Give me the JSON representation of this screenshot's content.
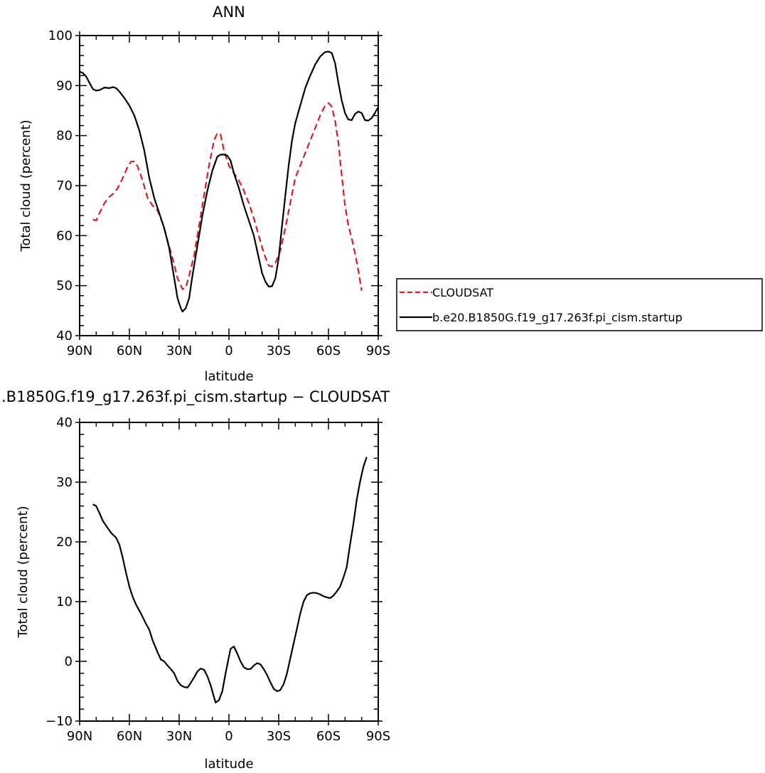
{
  "colors": {
    "model": "#000000",
    "obs": "#e0191d"
  },
  "chart_data": [
    {
      "type": "line",
      "title": "ANN",
      "xlabel": "latitude",
      "ylabel": "Total cloud (percent)",
      "xlim": [
        -90,
        90
      ],
      "ylim": [
        40,
        100
      ],
      "x_ticks": [
        -90,
        -60,
        -30,
        0,
        30,
        60,
        90
      ],
      "x_tick_labels": [
        "90N",
        "60N",
        "30N",
        "0",
        "30S",
        "60S",
        "90S"
      ],
      "y_ticks": [
        40,
        50,
        60,
        70,
        80,
        90,
        100
      ],
      "y_tick_labels": [
        "40",
        "50",
        "60",
        "70",
        "80",
        "90",
        "100"
      ],
      "grid": false,
      "legend": {
        "placement": "right",
        "entries": [
          "CLOUDSAT",
          "b.e20.B1850G.f19_g17.263f.pi_cism.startup"
        ]
      },
      "series": [
        {
          "name": "CLOUDSAT",
          "color": "#e0191d",
          "dash": true,
          "points": [
            [
              -82,
              63.2
            ],
            [
              -80,
              63
            ],
            [
              -78,
              64.5
            ],
            [
              -75,
              66.5
            ],
            [
              -72,
              67.8
            ],
            [
              -70,
              68.3
            ],
            [
              -67,
              69.5
            ],
            [
              -64,
              71.5
            ],
            [
              -61,
              73.8
            ],
            [
              -59,
              74.8
            ],
            [
              -57,
              74.8
            ],
            [
              -55,
              73.8
            ],
            [
              -52,
              71
            ],
            [
              -49,
              67.5
            ],
            [
              -46,
              66
            ],
            [
              -43,
              65
            ],
            [
              -40,
              62.5
            ],
            [
              -37,
              59
            ],
            [
              -34,
              55.5
            ],
            [
              -31,
              51.5
            ],
            [
              -28,
              49.3
            ],
            [
              -26,
              49.6
            ],
            [
              -24,
              52
            ],
            [
              -21,
              56
            ],
            [
              -18,
              62
            ],
            [
              -15,
              68
            ],
            [
              -12,
              74
            ],
            [
              -9,
              79
            ],
            [
              -7,
              80.5
            ],
            [
              -5,
              80.2
            ],
            [
              -3,
              77
            ],
            [
              0,
              74
            ],
            [
              3,
              72.5
            ],
            [
              6,
              71
            ],
            [
              9,
              69
            ],
            [
              12,
              66.5
            ],
            [
              15,
              63.5
            ],
            [
              18,
              60
            ],
            [
              21,
              56.5
            ],
            [
              24,
              54
            ],
            [
              26,
              53.8
            ],
            [
              28,
              54.5
            ],
            [
              31,
              57
            ],
            [
              34,
              61.5
            ],
            [
              37,
              66.5
            ],
            [
              40,
              71.5
            ],
            [
              43,
              74
            ],
            [
              46,
              76.5
            ],
            [
              49,
              79
            ],
            [
              52,
              81.5
            ],
            [
              55,
              84
            ],
            [
              58,
              86
            ],
            [
              60,
              86.5
            ],
            [
              62,
              85.8
            ],
            [
              64,
              83
            ],
            [
              66,
              78.5
            ],
            [
              68,
              72
            ],
            [
              70,
              66
            ],
            [
              72,
              62
            ],
            [
              74,
              59.5
            ],
            [
              76,
              56.5
            ],
            [
              78,
              53
            ],
            [
              80,
              49
            ]
          ]
        },
        {
          "name": "b.e20.B1850G.f19_g17.263f.pi_cism.startup",
          "color": "#000000",
          "dash": false,
          "points": [
            [
              -90,
              92.8
            ],
            [
              -88,
              92.5
            ],
            [
              -86,
              91.8
            ],
            [
              -84,
              90.5
            ],
            [
              -82,
              89.3
            ],
            [
              -80,
              89
            ],
            [
              -78,
              89.1
            ],
            [
              -75,
              89.6
            ],
            [
              -72,
              89.5
            ],
            [
              -70,
              89.7
            ],
            [
              -68,
              89.5
            ],
            [
              -66,
              88.8
            ],
            [
              -63,
              87.5
            ],
            [
              -60,
              86
            ],
            [
              -57,
              84
            ],
            [
              -54,
              81
            ],
            [
              -51,
              77
            ],
            [
              -48,
              71.5
            ],
            [
              -45,
              67.5
            ],
            [
              -42,
              64.5
            ],
            [
              -39,
              61.5
            ],
            [
              -36,
              57.5
            ],
            [
              -33,
              51.5
            ],
            [
              -31,
              47.5
            ],
            [
              -29,
              45.5
            ],
            [
              -28,
              44.8
            ],
            [
              -26,
              45.5
            ],
            [
              -24,
              47.5
            ],
            [
              -22,
              52
            ],
            [
              -19,
              58
            ],
            [
              -16,
              64
            ],
            [
              -13,
              69
            ],
            [
              -10,
              73
            ],
            [
              -7,
              75.8
            ],
            [
              -5,
              76.2
            ],
            [
              -3,
              76.2
            ],
            [
              -1,
              76
            ],
            [
              1,
              75
            ],
            [
              3,
              72.5
            ],
            [
              6,
              69.5
            ],
            [
              9,
              66
            ],
            [
              12,
              63
            ],
            [
              15,
              60
            ],
            [
              18,
              55.5
            ],
            [
              20,
              52.5
            ],
            [
              22,
              50.8
            ],
            [
              24,
              49.8
            ],
            [
              26,
              49.9
            ],
            [
              28,
              51.5
            ],
            [
              30,
              55.5
            ],
            [
              32,
              62
            ],
            [
              34,
              68
            ],
            [
              36,
              74
            ],
            [
              38,
              79
            ],
            [
              40,
              82.5
            ],
            [
              43,
              86
            ],
            [
              46,
              89.5
            ],
            [
              49,
              92
            ],
            [
              52,
              94.2
            ],
            [
              55,
              95.8
            ],
            [
              58,
              96.7
            ],
            [
              60,
              96.8
            ],
            [
              62,
              96.5
            ],
            [
              64,
              94.5
            ],
            [
              66,
              90.5
            ],
            [
              68,
              87
            ],
            [
              70,
              84.5
            ],
            [
              72,
              83.2
            ],
            [
              74,
              83.1
            ],
            [
              76,
              84.3
            ],
            [
              78,
              84.8
            ],
            [
              80,
              84.5
            ],
            [
              82,
              83.1
            ],
            [
              84,
              83
            ],
            [
              86,
              83.5
            ],
            [
              88,
              84.5
            ],
            [
              90,
              85.7
            ]
          ]
        }
      ]
    },
    {
      "type": "line",
      "title": ".B1850G.f19_g17.263f.pi_cism.startup − CLOUDSAT",
      "xlabel": "latitude",
      "ylabel": "Total cloud (percent)",
      "xlim": [
        -90,
        90
      ],
      "ylim": [
        -10,
        40
      ],
      "x_ticks": [
        -90,
        -60,
        -30,
        0,
        30,
        60,
        90
      ],
      "x_tick_labels": [
        "90N",
        "60N",
        "30N",
        "0",
        "30S",
        "60S",
        "90S"
      ],
      "y_ticks": [
        -10,
        0,
        10,
        20,
        30,
        40
      ],
      "y_tick_labels": [
        "−10",
        "0",
        "10",
        "20",
        "30",
        "40"
      ],
      "grid": false,
      "series": [
        {
          "color": "#000000",
          "dash": false,
          "points": [
            [
              -82,
              26.3
            ],
            [
              -80,
              26
            ],
            [
              -78,
              24.8
            ],
            [
              -76,
              23.5
            ],
            [
              -73,
              22.3
            ],
            [
              -71,
              21.5
            ],
            [
              -68,
              20.7
            ],
            [
              -66,
              19.5
            ],
            [
              -64,
              17.3
            ],
            [
              -62,
              14.8
            ],
            [
              -60,
              12.5
            ],
            [
              -58,
              10.8
            ],
            [
              -56,
              9.5
            ],
            [
              -53,
              8
            ],
            [
              -50,
              6.3
            ],
            [
              -48,
              5.3
            ],
            [
              -46,
              3.5
            ],
            [
              -43,
              1.5
            ],
            [
              -41,
              0.3
            ],
            [
              -39,
              0
            ],
            [
              -37,
              -0.7
            ],
            [
              -35,
              -1.3
            ],
            [
              -33,
              -2
            ],
            [
              -31,
              -3.3
            ],
            [
              -29,
              -4
            ],
            [
              -27,
              -4.3
            ],
            [
              -25,
              -4.4
            ],
            [
              -23,
              -3.6
            ],
            [
              -21,
              -2.7
            ],
            [
              -19,
              -1.7
            ],
            [
              -17,
              -1.2
            ],
            [
              -15,
              -1.4
            ],
            [
              -13,
              -2.5
            ],
            [
              -11,
              -4
            ],
            [
              -9,
              -6
            ],
            [
              -8,
              -6.9
            ],
            [
              -6,
              -6.5
            ],
            [
              -4,
              -5
            ],
            [
              -2,
              -2
            ],
            [
              0,
              0.8
            ],
            [
              1,
              2.1
            ],
            [
              3,
              2.5
            ],
            [
              5,
              1.3
            ],
            [
              7,
              0
            ],
            [
              9,
              -1
            ],
            [
              11,
              -1.3
            ],
            [
              13,
              -1.3
            ],
            [
              15,
              -0.7
            ],
            [
              17,
              -0.3
            ],
            [
              19,
              -0.5
            ],
            [
              21,
              -1.3
            ],
            [
              23,
              -2.3
            ],
            [
              25,
              -3.5
            ],
            [
              27,
              -4.6
            ],
            [
              29,
              -5
            ],
            [
              31,
              -4.8
            ],
            [
              33,
              -3.8
            ],
            [
              35,
              -2
            ],
            [
              37,
              0.5
            ],
            [
              39,
              3
            ],
            [
              41,
              5.5
            ],
            [
              43,
              8
            ],
            [
              45,
              10
            ],
            [
              47,
              11.1
            ],
            [
              49,
              11.4
            ],
            [
              51,
              11.5
            ],
            [
              53,
              11.4
            ],
            [
              55,
              11.2
            ],
            [
              57,
              10.9
            ],
            [
              59,
              10.7
            ],
            [
              61,
              10.6
            ],
            [
              63,
              11
            ],
            [
              65,
              11.7
            ],
            [
              67,
              12.5
            ],
            [
              69,
              14
            ],
            [
              71,
              15.8
            ],
            [
              73,
              19.5
            ],
            [
              75,
              23
            ],
            [
              77,
              27
            ],
            [
              79,
              30
            ],
            [
              81,
              32.5
            ],
            [
              83,
              34.2
            ]
          ]
        }
      ]
    }
  ]
}
